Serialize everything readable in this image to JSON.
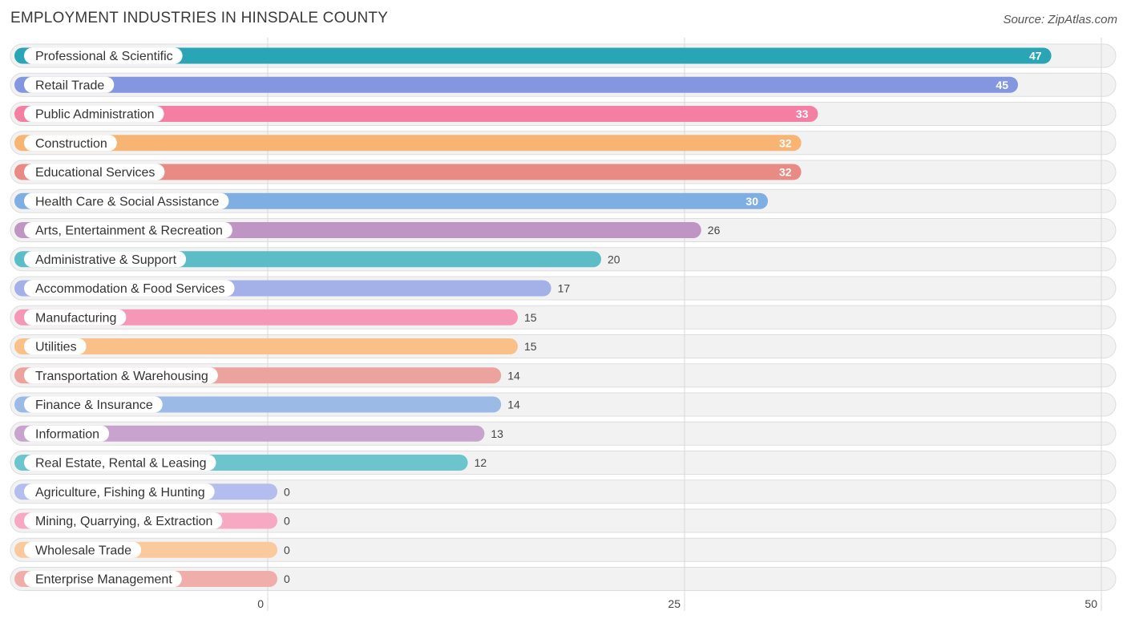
{
  "chart_data": {
    "type": "bar",
    "orientation": "horizontal",
    "title": "EMPLOYMENT INDUSTRIES IN HINSDALE COUNTY",
    "source": "Source: ZipAtlas.com",
    "xlim": [
      0,
      50
    ],
    "xticks": [
      0,
      25,
      50
    ],
    "categories": [
      "Professional & Scientific",
      "Retail Trade",
      "Public Administration",
      "Construction",
      "Educational Services",
      "Health Care & Social Assistance",
      "Arts, Entertainment & Recreation",
      "Administrative & Support",
      "Accommodation & Food Services",
      "Manufacturing",
      "Utilities",
      "Transportation & Warehousing",
      "Finance & Insurance",
      "Information",
      "Real Estate, Rental & Leasing",
      "Agriculture, Fishing & Hunting",
      "Mining, Quarrying, & Extraction",
      "Wholesale Trade",
      "Enterprise Management"
    ],
    "values": [
      47,
      45,
      33,
      32,
      32,
      30,
      26,
      20,
      17,
      15,
      15,
      14,
      14,
      13,
      12,
      0,
      0,
      0,
      0
    ],
    "colors": [
      "#2aa5b5",
      "#8496e0",
      "#f47fa3",
      "#f8b472",
      "#e98b84",
      "#7faee3",
      "#bf95c4",
      "#5cbdc6",
      "#a4b0e8",
      "#f597b6",
      "#f9c088",
      "#eda39d",
      "#9bbbe6",
      "#c7a3cd",
      "#6cc4cd",
      "#b3bdee",
      "#f7a8c3",
      "#f9ca9e",
      "#efaeaa"
    ]
  }
}
